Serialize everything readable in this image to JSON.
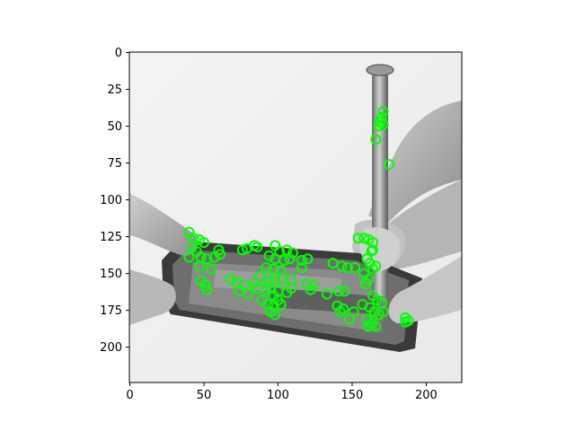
{
  "chart_data": {
    "type": "image",
    "title": "",
    "xlabel": "",
    "ylabel": "",
    "xlim": [
      0,
      224
    ],
    "ylim": [
      224,
      0
    ],
    "xticks": [
      0,
      50,
      100,
      150,
      200
    ],
    "yticks": [
      0,
      25,
      50,
      75,
      100,
      125,
      150,
      175,
      200
    ],
    "image_description_icon": "grayscale-phone-repair-photo",
    "marker_color": "#00ff00",
    "marker_style": "hollow-circle",
    "keypoints": [
      [
        171,
        40
      ],
      [
        170,
        44
      ],
      [
        169,
        47
      ],
      [
        168,
        50
      ],
      [
        171,
        49
      ],
      [
        166,
        59
      ],
      [
        175,
        76
      ],
      [
        40,
        122
      ],
      [
        43,
        126
      ],
      [
        47,
        127
      ],
      [
        50,
        129
      ],
      [
        42,
        132
      ],
      [
        45,
        135
      ],
      [
        40,
        139
      ],
      [
        48,
        139
      ],
      [
        52,
        140
      ],
      [
        47,
        145
      ],
      [
        55,
        147
      ],
      [
        57,
        139
      ],
      [
        60,
        134
      ],
      [
        61,
        137
      ],
      [
        76,
        134
      ],
      [
        79,
        133
      ],
      [
        84,
        131
      ],
      [
        86,
        132
      ],
      [
        98,
        131
      ],
      [
        101,
        135
      ],
      [
        106,
        134
      ],
      [
        110,
        136
      ],
      [
        94,
        138
      ],
      [
        98,
        140
      ],
      [
        104,
        141
      ],
      [
        108,
        140
      ],
      [
        116,
        141
      ],
      [
        120,
        140
      ],
      [
        116,
        146
      ],
      [
        92,
        146
      ],
      [
        97,
        147
      ],
      [
        102,
        148
      ],
      [
        88,
        152
      ],
      [
        94,
        155
      ],
      [
        98,
        155
      ],
      [
        103,
        154
      ],
      [
        109,
        154
      ],
      [
        84,
        156
      ],
      [
        86,
        160
      ],
      [
        68,
        154
      ],
      [
        72,
        156
      ],
      [
        77,
        158
      ],
      [
        74,
        162
      ],
      [
        80,
        164
      ],
      [
        48,
        155
      ],
      [
        51,
        158
      ],
      [
        52,
        161
      ],
      [
        95,
        160
      ],
      [
        100,
        162
      ],
      [
        106,
        163
      ],
      [
        109,
        160
      ],
      [
        119,
        157
      ],
      [
        122,
        161
      ],
      [
        124,
        158
      ],
      [
        89,
        168
      ],
      [
        93,
        171
      ],
      [
        97,
        172
      ],
      [
        95,
        176
      ],
      [
        98,
        178
      ],
      [
        100,
        168
      ],
      [
        102,
        171
      ],
      [
        133,
        164
      ],
      [
        141,
        162
      ],
      [
        145,
        162
      ],
      [
        137,
        143
      ],
      [
        143,
        145
      ],
      [
        147,
        146
      ],
      [
        152,
        146
      ],
      [
        140,
        172
      ],
      [
        144,
        174
      ],
      [
        142,
        176
      ],
      [
        148,
        181
      ],
      [
        151,
        176
      ],
      [
        154,
        126
      ],
      [
        158,
        126
      ],
      [
        161,
        127
      ],
      [
        164,
        129
      ],
      [
        163,
        135
      ],
      [
        160,
        140
      ],
      [
        162,
        143
      ],
      [
        164,
        147
      ],
      [
        166,
        145
      ],
      [
        159,
        157
      ],
      [
        164,
        165
      ],
      [
        167,
        168
      ],
      [
        170,
        170
      ],
      [
        162,
        173
      ],
      [
        165,
        176
      ],
      [
        168,
        178
      ],
      [
        160,
        181
      ],
      [
        163,
        184
      ],
      [
        161,
        186
      ],
      [
        166,
        186
      ],
      [
        171,
        176
      ],
      [
        157,
        171
      ],
      [
        186,
        180
      ],
      [
        186,
        183
      ],
      [
        188,
        182
      ],
      [
        164,
        134
      ],
      [
        158,
        150
      ],
      [
        161,
        154
      ],
      [
        92,
        161
      ],
      [
        97,
        165
      ]
    ]
  }
}
